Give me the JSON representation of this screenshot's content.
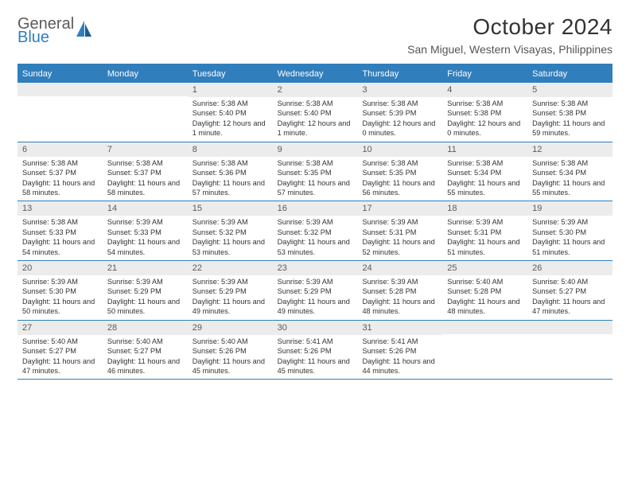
{
  "brand": {
    "part1": "General",
    "part2": "Blue"
  },
  "title": "October 2024",
  "location": "San Miguel, Western Visayas, Philippines",
  "colors": {
    "accent": "#317ebc",
    "daybar": "#ececec",
    "text": "#333333",
    "muted": "#5a5a5a",
    "bg": "#ffffff"
  },
  "fonts": {
    "title_size_pt": 28,
    "location_size_pt": 14,
    "weekday_size_pt": 11,
    "daynum_size_pt": 11,
    "body_size_pt": 9.2
  },
  "weekdays": [
    "Sunday",
    "Monday",
    "Tuesday",
    "Wednesday",
    "Thursday",
    "Friday",
    "Saturday"
  ],
  "weeks": [
    [
      {
        "n": "",
        "sr": "",
        "ss": "",
        "dl": ""
      },
      {
        "n": "",
        "sr": "",
        "ss": "",
        "dl": ""
      },
      {
        "n": "1",
        "sr": "Sunrise: 5:38 AM",
        "ss": "Sunset: 5:40 PM",
        "dl": "Daylight: 12 hours and 1 minute."
      },
      {
        "n": "2",
        "sr": "Sunrise: 5:38 AM",
        "ss": "Sunset: 5:40 PM",
        "dl": "Daylight: 12 hours and 1 minute."
      },
      {
        "n": "3",
        "sr": "Sunrise: 5:38 AM",
        "ss": "Sunset: 5:39 PM",
        "dl": "Daylight: 12 hours and 0 minutes."
      },
      {
        "n": "4",
        "sr": "Sunrise: 5:38 AM",
        "ss": "Sunset: 5:38 PM",
        "dl": "Daylight: 12 hours and 0 minutes."
      },
      {
        "n": "5",
        "sr": "Sunrise: 5:38 AM",
        "ss": "Sunset: 5:38 PM",
        "dl": "Daylight: 11 hours and 59 minutes."
      }
    ],
    [
      {
        "n": "6",
        "sr": "Sunrise: 5:38 AM",
        "ss": "Sunset: 5:37 PM",
        "dl": "Daylight: 11 hours and 58 minutes."
      },
      {
        "n": "7",
        "sr": "Sunrise: 5:38 AM",
        "ss": "Sunset: 5:37 PM",
        "dl": "Daylight: 11 hours and 58 minutes."
      },
      {
        "n": "8",
        "sr": "Sunrise: 5:38 AM",
        "ss": "Sunset: 5:36 PM",
        "dl": "Daylight: 11 hours and 57 minutes."
      },
      {
        "n": "9",
        "sr": "Sunrise: 5:38 AM",
        "ss": "Sunset: 5:35 PM",
        "dl": "Daylight: 11 hours and 57 minutes."
      },
      {
        "n": "10",
        "sr": "Sunrise: 5:38 AM",
        "ss": "Sunset: 5:35 PM",
        "dl": "Daylight: 11 hours and 56 minutes."
      },
      {
        "n": "11",
        "sr": "Sunrise: 5:38 AM",
        "ss": "Sunset: 5:34 PM",
        "dl": "Daylight: 11 hours and 55 minutes."
      },
      {
        "n": "12",
        "sr": "Sunrise: 5:38 AM",
        "ss": "Sunset: 5:34 PM",
        "dl": "Daylight: 11 hours and 55 minutes."
      }
    ],
    [
      {
        "n": "13",
        "sr": "Sunrise: 5:38 AM",
        "ss": "Sunset: 5:33 PM",
        "dl": "Daylight: 11 hours and 54 minutes."
      },
      {
        "n": "14",
        "sr": "Sunrise: 5:39 AM",
        "ss": "Sunset: 5:33 PM",
        "dl": "Daylight: 11 hours and 54 minutes."
      },
      {
        "n": "15",
        "sr": "Sunrise: 5:39 AM",
        "ss": "Sunset: 5:32 PM",
        "dl": "Daylight: 11 hours and 53 minutes."
      },
      {
        "n": "16",
        "sr": "Sunrise: 5:39 AM",
        "ss": "Sunset: 5:32 PM",
        "dl": "Daylight: 11 hours and 53 minutes."
      },
      {
        "n": "17",
        "sr": "Sunrise: 5:39 AM",
        "ss": "Sunset: 5:31 PM",
        "dl": "Daylight: 11 hours and 52 minutes."
      },
      {
        "n": "18",
        "sr": "Sunrise: 5:39 AM",
        "ss": "Sunset: 5:31 PM",
        "dl": "Daylight: 11 hours and 51 minutes."
      },
      {
        "n": "19",
        "sr": "Sunrise: 5:39 AM",
        "ss": "Sunset: 5:30 PM",
        "dl": "Daylight: 11 hours and 51 minutes."
      }
    ],
    [
      {
        "n": "20",
        "sr": "Sunrise: 5:39 AM",
        "ss": "Sunset: 5:30 PM",
        "dl": "Daylight: 11 hours and 50 minutes."
      },
      {
        "n": "21",
        "sr": "Sunrise: 5:39 AM",
        "ss": "Sunset: 5:29 PM",
        "dl": "Daylight: 11 hours and 50 minutes."
      },
      {
        "n": "22",
        "sr": "Sunrise: 5:39 AM",
        "ss": "Sunset: 5:29 PM",
        "dl": "Daylight: 11 hours and 49 minutes."
      },
      {
        "n": "23",
        "sr": "Sunrise: 5:39 AM",
        "ss": "Sunset: 5:29 PM",
        "dl": "Daylight: 11 hours and 49 minutes."
      },
      {
        "n": "24",
        "sr": "Sunrise: 5:39 AM",
        "ss": "Sunset: 5:28 PM",
        "dl": "Daylight: 11 hours and 48 minutes."
      },
      {
        "n": "25",
        "sr": "Sunrise: 5:40 AM",
        "ss": "Sunset: 5:28 PM",
        "dl": "Daylight: 11 hours and 48 minutes."
      },
      {
        "n": "26",
        "sr": "Sunrise: 5:40 AM",
        "ss": "Sunset: 5:27 PM",
        "dl": "Daylight: 11 hours and 47 minutes."
      }
    ],
    [
      {
        "n": "27",
        "sr": "Sunrise: 5:40 AM",
        "ss": "Sunset: 5:27 PM",
        "dl": "Daylight: 11 hours and 47 minutes."
      },
      {
        "n": "28",
        "sr": "Sunrise: 5:40 AM",
        "ss": "Sunset: 5:27 PM",
        "dl": "Daylight: 11 hours and 46 minutes."
      },
      {
        "n": "29",
        "sr": "Sunrise: 5:40 AM",
        "ss": "Sunset: 5:26 PM",
        "dl": "Daylight: 11 hours and 45 minutes."
      },
      {
        "n": "30",
        "sr": "Sunrise: 5:41 AM",
        "ss": "Sunset: 5:26 PM",
        "dl": "Daylight: 11 hours and 45 minutes."
      },
      {
        "n": "31",
        "sr": "Sunrise: 5:41 AM",
        "ss": "Sunset: 5:26 PM",
        "dl": "Daylight: 11 hours and 44 minutes."
      },
      {
        "n": "",
        "sr": "",
        "ss": "",
        "dl": ""
      },
      {
        "n": "",
        "sr": "",
        "ss": "",
        "dl": ""
      }
    ]
  ]
}
